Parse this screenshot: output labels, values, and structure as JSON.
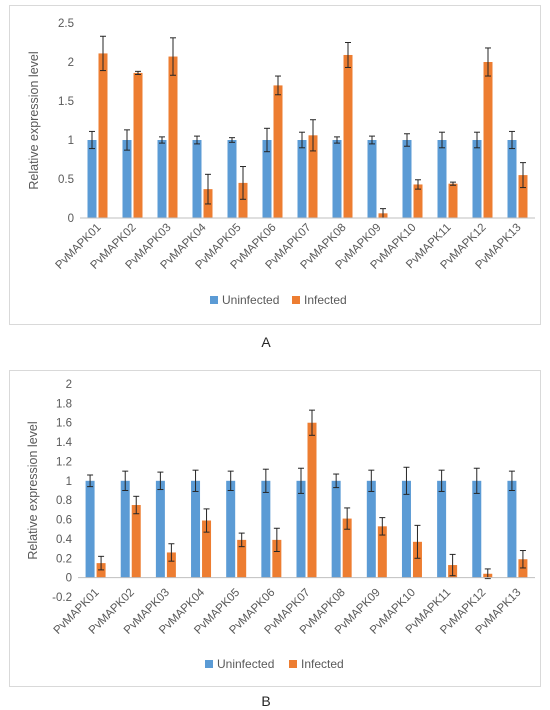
{
  "panels": {
    "a_label": "A",
    "b_label": "B"
  },
  "colors": {
    "uninfected": "#5b9bd5",
    "infected": "#ed7d31",
    "error": "#262626",
    "axis": "#bfbfbf",
    "text": "#595959"
  },
  "chart_data": [
    {
      "type": "bar",
      "panel": "A",
      "ylabel": "Relative expression level",
      "xlabel": "",
      "ylim": [
        0,
        2.5
      ],
      "ytick_step": 0.5,
      "yticks": [
        "0",
        "0.5",
        "1",
        "1.5",
        "2",
        "2.5"
      ],
      "grid": false,
      "legend_position": "bottom",
      "categories": [
        "PvMAPK01",
        "PvMAPK02",
        "PvMAPK03",
        "PvMAPK04",
        "PvMAPK05",
        "PvMAPK06",
        "PvMAPK07",
        "PvMAPK08",
        "PvMAPK09",
        "PvMAPK10",
        "PvMAPK11",
        "PvMAPK12",
        "PvMAPK13"
      ],
      "series": [
        {
          "name": "Uninfected",
          "values": [
            1,
            1,
            1,
            1,
            1,
            1,
            1,
            1,
            1,
            1,
            1,
            1,
            1
          ],
          "errors": [
            0.11,
            0.13,
            0.04,
            0.05,
            0.03,
            0.15,
            0.1,
            0.04,
            0.05,
            0.08,
            0.1,
            0.1,
            0.11
          ]
        },
        {
          "name": "Infected",
          "values": [
            2.11,
            1.86,
            2.07,
            0.37,
            0.45,
            1.7,
            1.06,
            2.09,
            0.06,
            0.43,
            0.44,
            2.0,
            0.55
          ],
          "errors": [
            0.22,
            0.02,
            0.24,
            0.19,
            0.21,
            0.12,
            0.2,
            0.16,
            0.06,
            0.06,
            0.02,
            0.18,
            0.16
          ]
        }
      ]
    },
    {
      "type": "bar",
      "panel": "B",
      "ylabel": "Relative expression level",
      "xlabel": "",
      "ylim": [
        -0.2,
        2
      ],
      "ytick_step": 0.2,
      "yticks": [
        "-0.2",
        "0",
        "0.2",
        "0.4",
        "0.6",
        "0.8",
        "1",
        "1.2",
        "1.4",
        "1.6",
        "1.8",
        "2"
      ],
      "grid": false,
      "legend_position": "bottom",
      "categories": [
        "PvMAPK01",
        "PvMAPK02",
        "PvMAPK03",
        "PvMAPK04",
        "PvMAPK05",
        "PvMAPK06",
        "PvMAPK07",
        "PvMAPK08",
        "PvMAPK09",
        "PvMAPK10",
        "PvMAPK11",
        "PvMAPK12",
        "PvMAPK13"
      ],
      "series": [
        {
          "name": "Uninfected",
          "values": [
            1,
            1,
            1,
            1,
            1,
            1,
            1,
            1,
            1,
            1,
            1,
            1,
            1
          ],
          "errors": [
            0.06,
            0.1,
            0.09,
            0.11,
            0.1,
            0.12,
            0.13,
            0.07,
            0.11,
            0.14,
            0.11,
            0.13,
            0.1
          ]
        },
        {
          "name": "Infected",
          "values": [
            0.15,
            0.75,
            0.26,
            0.59,
            0.39,
            0.39,
            1.6,
            0.61,
            0.53,
            0.37,
            0.13,
            0.04,
            0.19
          ],
          "errors": [
            0.07,
            0.09,
            0.09,
            0.12,
            0.07,
            0.12,
            0.13,
            0.11,
            0.09,
            0.17,
            0.11,
            0.05,
            0.09
          ]
        }
      ]
    }
  ]
}
